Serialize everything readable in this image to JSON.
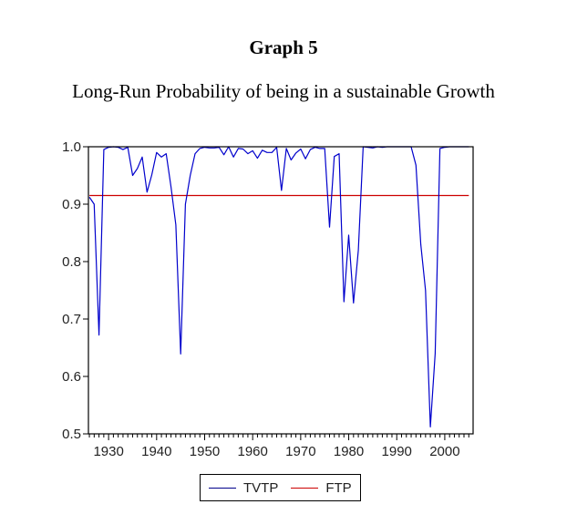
{
  "chart_data": {
    "type": "line",
    "title": "Graph 5",
    "subtitle": "Long-Run Probability of being in a sustainable Growth",
    "xlabel": "",
    "ylabel": "",
    "xlim": [
      1926,
      2005
    ],
    "ylim": [
      0.5,
      1.0
    ],
    "x_ticks": [
      1930,
      1940,
      1950,
      1960,
      1970,
      1980,
      1990,
      2000
    ],
    "x_tick_labels": [
      "1930",
      "1940",
      "1950",
      "1960",
      "1970",
      "1980",
      "1990",
      "2000"
    ],
    "y_ticks": [
      0.5,
      0.6,
      0.7,
      0.8,
      0.9,
      1.0
    ],
    "y_tick_labels": [
      "0.5",
      "0.6",
      "0.7",
      "0.8",
      "0.9",
      "1.0"
    ],
    "grid": false,
    "legend_position": "bottom",
    "x": [
      1926,
      1927,
      1928,
      1929,
      1930,
      1931,
      1932,
      1933,
      1934,
      1935,
      1936,
      1937,
      1938,
      1939,
      1940,
      1941,
      1942,
      1943,
      1944,
      1945,
      1946,
      1947,
      1948,
      1949,
      1950,
      1951,
      1952,
      1953,
      1954,
      1955,
      1956,
      1957,
      1958,
      1959,
      1960,
      1961,
      1962,
      1963,
      1964,
      1965,
      1966,
      1967,
      1968,
      1969,
      1970,
      1971,
      1972,
      1973,
      1974,
      1975,
      1976,
      1977,
      1978,
      1979,
      1980,
      1981,
      1982,
      1983,
      1984,
      1985,
      1986,
      1987,
      1988,
      1989,
      1990,
      1991,
      1992,
      1993,
      1994,
      1995,
      1996,
      1997,
      1998,
      1999,
      2000,
      2001,
      2002,
      2003,
      2004,
      2005
    ],
    "series": [
      {
        "name": "TVTP",
        "color": "#0000cc",
        "values": [
          0.912,
          0.9,
          0.672,
          0.995,
          0.999,
          1.0,
          0.999,
          0.995,
          0.999,
          0.95,
          0.962,
          0.982,
          0.921,
          0.951,
          0.99,
          0.982,
          0.988,
          0.93,
          0.864,
          0.639,
          0.9,
          0.95,
          0.988,
          0.997,
          0.999,
          0.998,
          0.998,
          0.999,
          0.986,
          1.0,
          0.982,
          0.997,
          0.996,
          0.988,
          0.993,
          0.98,
          0.994,
          0.99,
          0.99,
          0.999,
          0.924,
          0.997,
          0.977,
          0.989,
          0.996,
          0.979,
          0.995,
          0.999,
          0.997,
          0.997,
          0.86,
          0.983,
          0.988,
          0.73,
          0.846,
          0.728,
          0.82,
          1.0,
          0.999,
          0.998,
          1.0,
          0.999,
          1.0,
          1.0,
          1.0,
          1.0,
          1.0,
          1.0,
          0.968,
          0.83,
          0.75,
          0.512,
          0.64,
          0.997,
          0.999,
          1.0,
          1.0,
          1.0,
          1.0,
          1.0
        ]
      },
      {
        "name": "FTP",
        "color": "#cc0000",
        "values": [
          0.915,
          0.915,
          0.915,
          0.915,
          0.915,
          0.915,
          0.915,
          0.915,
          0.915,
          0.915,
          0.915,
          0.915,
          0.915,
          0.915,
          0.915,
          0.915,
          0.915,
          0.915,
          0.915,
          0.915,
          0.915,
          0.915,
          0.915,
          0.915,
          0.915,
          0.915,
          0.915,
          0.915,
          0.915,
          0.915,
          0.915,
          0.915,
          0.915,
          0.915,
          0.915,
          0.915,
          0.915,
          0.915,
          0.915,
          0.915,
          0.915,
          0.915,
          0.915,
          0.915,
          0.915,
          0.915,
          0.915,
          0.915,
          0.915,
          0.915,
          0.915,
          0.915,
          0.915,
          0.915,
          0.915,
          0.915,
          0.915,
          0.915,
          0.915,
          0.915,
          0.915,
          0.915,
          0.915,
          0.915,
          0.915,
          0.915,
          0.915,
          0.915,
          0.915,
          0.915,
          0.915,
          0.915,
          0.915,
          0.915,
          0.915,
          0.915,
          0.915,
          0.915,
          0.915,
          0.915
        ]
      }
    ]
  }
}
